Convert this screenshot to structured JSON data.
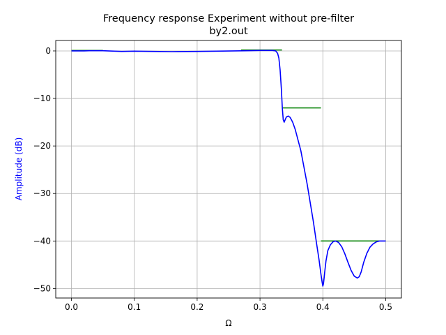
{
  "chart_data": {
    "type": "line",
    "title": "Frequency response Experiment without pre-filter",
    "subtitle": "by2.out",
    "xlabel": "Ω",
    "ylabel": "Amplitude (dB)",
    "xlim": [
      -0.025,
      0.525
    ],
    "ylim": [
      -52.0,
      2.2
    ],
    "grid": true,
    "xticks": [
      0.0,
      0.1,
      0.2,
      0.3,
      0.4,
      0.5
    ],
    "xtick_labels": [
      "0.0",
      "0.1",
      "0.2",
      "0.3",
      "0.4",
      "0.5"
    ],
    "yticks": [
      0,
      -10,
      -20,
      -30,
      -40,
      -50
    ],
    "ytick_labels": [
      "0",
      "−10",
      "−20",
      "−30",
      "−40",
      "−50"
    ],
    "colors": {
      "response": "#0000ff",
      "spec": "#008000",
      "grid": "#b0b0b0",
      "ylabel": "#0000ff"
    },
    "series": [
      {
        "kind": "response",
        "x": [
          0.0,
          0.01,
          0.02,
          0.03,
          0.05,
          0.08,
          0.1,
          0.13,
          0.16,
          0.2,
          0.23,
          0.26,
          0.28,
          0.3,
          0.31,
          0.32,
          0.325,
          0.328,
          0.33,
          0.332,
          0.334,
          0.3355,
          0.337,
          0.3385,
          0.34,
          0.342,
          0.345,
          0.348,
          0.352,
          0.356,
          0.36,
          0.365,
          0.37,
          0.375,
          0.38,
          0.385,
          0.39,
          0.394,
          0.397,
          0.399,
          0.4,
          0.401,
          0.402,
          0.403,
          0.405,
          0.408,
          0.412,
          0.416,
          0.42,
          0.425,
          0.43,
          0.435,
          0.44,
          0.445,
          0.45,
          0.455,
          0.458,
          0.461,
          0.465,
          0.47,
          0.475,
          0.48,
          0.485,
          0.49,
          0.495,
          0.5
        ],
        "y": [
          0.0,
          0.0,
          0.0,
          0.05,
          0.05,
          -0.1,
          -0.05,
          -0.1,
          -0.15,
          -0.1,
          -0.05,
          0.0,
          0.05,
          0.1,
          0.1,
          0.1,
          0.0,
          -0.5,
          -1.5,
          -4.0,
          -8.0,
          -12.0,
          -14.5,
          -15.0,
          -14.5,
          -13.9,
          -13.7,
          -14.0,
          -15.0,
          -16.5,
          -18.5,
          -21.0,
          -24.5,
          -28.0,
          -32.0,
          -36.0,
          -40.5,
          -44.0,
          -47.0,
          -48.8,
          -49.5,
          -49.0,
          -47.8,
          -46.5,
          -44.2,
          -42.0,
          -40.8,
          -40.2,
          -40.0,
          -40.3,
          -41.2,
          -42.7,
          -44.5,
          -46.2,
          -47.4,
          -47.8,
          -47.5,
          -46.5,
          -44.5,
          -42.6,
          -41.3,
          -40.6,
          -40.2,
          -40.0,
          -40.0,
          -40.0
        ]
      },
      {
        "kind": "spec",
        "x": [
          0.0,
          0.05
        ],
        "y": [
          0.1,
          0.1
        ]
      },
      {
        "kind": "spec",
        "x": [
          0.27,
          0.335
        ],
        "y": [
          0.2,
          0.2
        ]
      },
      {
        "kind": "spec",
        "x": [
          0.335,
          0.397
        ],
        "y": [
          -12,
          -12
        ]
      },
      {
        "kind": "spec",
        "x": [
          0.397,
          0.5
        ],
        "y": [
          -40,
          -40
        ]
      }
    ]
  }
}
